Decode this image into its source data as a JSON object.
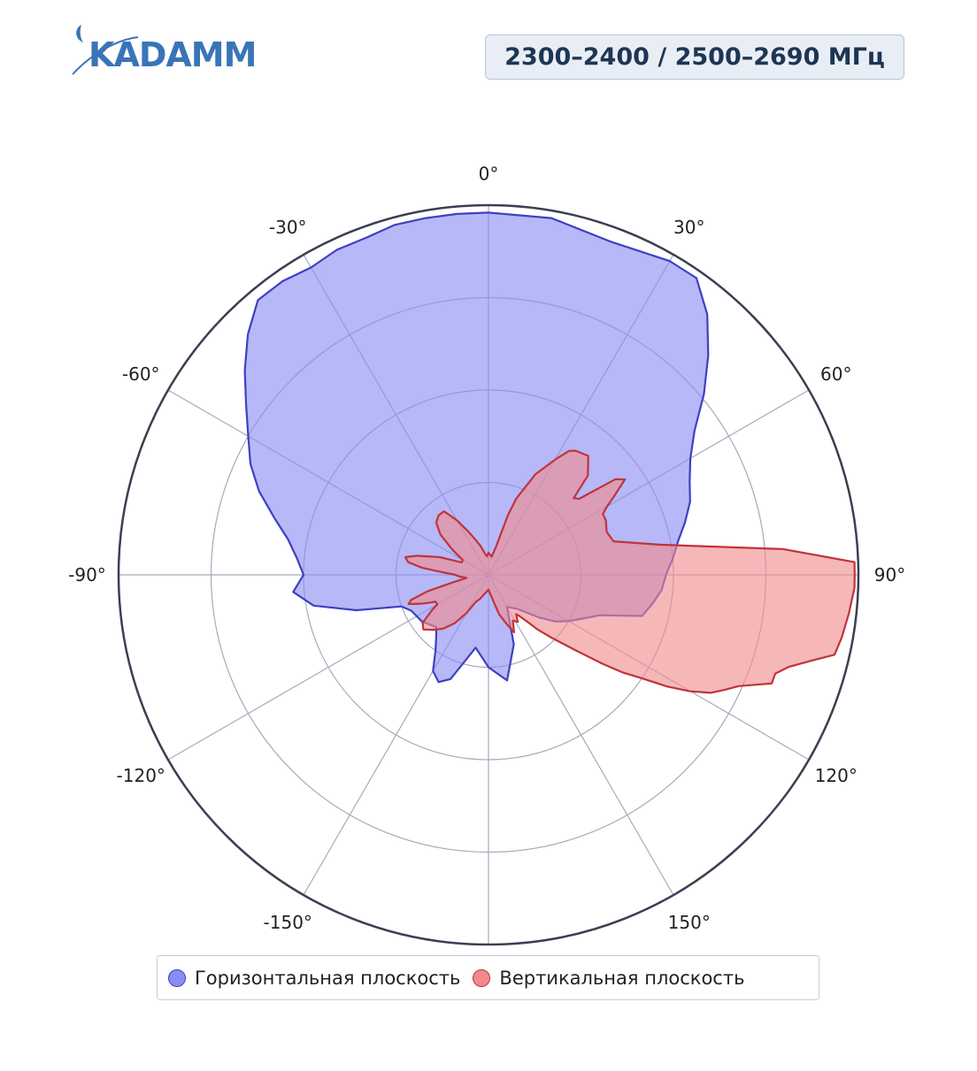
{
  "header": {
    "logo_text": "KADAMM",
    "frequency_badge": "2300–2400 / 2500–2690 МГц"
  },
  "colors": {
    "horizontal_fill": "#8b8cf2",
    "horizontal_stroke": "#3f40c2",
    "vertical_fill": "#f08a8e",
    "vertical_stroke": "#c0343a",
    "grid": "#a9a9bb",
    "outer_ring": "#3b3f52",
    "logo": "#3a74b8"
  },
  "legend": {
    "placement": "bottom-center",
    "items": [
      {
        "label": "Горизонтальная плоскость",
        "color": "#8b8cf2"
      },
      {
        "label": "Вертикальная плоскость",
        "color": "#f08a8e"
      }
    ]
  },
  "chart_data": {
    "type": "polar",
    "angular_direction": "clockwise",
    "zero_at": "top",
    "angular_ticks": [
      {
        "angle": 0,
        "label": "0°"
      },
      {
        "angle": 30,
        "label": "30°"
      },
      {
        "angle": 60,
        "label": "60°"
      },
      {
        "angle": 90,
        "label": "90°"
      },
      {
        "angle": 120,
        "label": "120°"
      },
      {
        "angle": 150,
        "label": "150°"
      },
      {
        "angle": 180,
        "label": ""
      },
      {
        "angle": -150,
        "label": "-150°"
      },
      {
        "angle": -120,
        "label": "-120°"
      },
      {
        "angle": -90,
        "label": "-90°"
      },
      {
        "angle": -60,
        "label": "-60°"
      },
      {
        "angle": -30,
        "label": "-30°"
      }
    ],
    "radial_range": [
      0,
      1
    ],
    "radial_grid": [
      0.25,
      0.5,
      0.75,
      1.0
    ],
    "series": [
      {
        "name": "Горизонтальная плоскость",
        "points": [
          [
            0,
            0.98
          ],
          [
            10,
            0.98
          ],
          [
            20,
            0.96
          ],
          [
            30,
            0.98
          ],
          [
            35,
            0.98
          ],
          [
            40,
            0.92
          ],
          [
            45,
            0.84
          ],
          [
            50,
            0.76
          ],
          [
            55,
            0.68
          ],
          [
            60,
            0.63
          ],
          [
            65,
            0.6
          ],
          [
            70,
            0.58
          ],
          [
            75,
            0.55
          ],
          [
            80,
            0.52
          ],
          [
            85,
            0.5
          ],
          [
            90,
            0.48
          ],
          [
            95,
            0.47
          ],
          [
            100,
            0.45
          ],
          [
            105,
            0.43
          ],
          [
            110,
            0.32
          ],
          [
            115,
            0.28
          ],
          [
            120,
            0.25
          ],
          [
            125,
            0.22
          ],
          [
            130,
            0.18
          ],
          [
            140,
            0.12
          ],
          [
            150,
            0.1
          ],
          [
            160,
            0.2
          ],
          [
            170,
            0.29
          ],
          [
            180,
            0.25
          ],
          [
            190,
            0.2
          ],
          [
            200,
            0.3
          ],
          [
            205,
            0.32
          ],
          [
            210,
            0.3
          ],
          [
            215,
            0.25
          ],
          [
            220,
            0.22
          ],
          [
            225,
            0.2
          ],
          [
            235,
            0.22
          ],
          [
            245,
            0.23
          ],
          [
            250,
            0.25
          ],
          [
            255,
            0.37
          ],
          [
            260,
            0.48
          ],
          [
            265,
            0.53
          ],
          [
            270,
            0.5
          ],
          [
            275,
            0.52
          ],
          [
            280,
            0.55
          ],
          [
            285,
            0.6
          ],
          [
            290,
            0.66
          ],
          [
            295,
            0.71
          ],
          [
            300,
            0.75
          ],
          [
            305,
            0.8
          ],
          [
            310,
            0.86
          ],
          [
            315,
            0.92
          ],
          [
            320,
            0.97
          ],
          [
            325,
            0.97
          ],
          [
            330,
            0.96
          ],
          [
            335,
            0.97
          ],
          [
            340,
            0.97
          ],
          [
            345,
            0.98
          ],
          [
            350,
            0.98
          ],
          [
            355,
            0.98
          ]
        ]
      },
      {
        "name": "Вертикальная плоскость",
        "points": [
          [
            0,
            0.06
          ],
          [
            10,
            0.05
          ],
          [
            15,
            0.08
          ],
          [
            18,
            0.17
          ],
          [
            20,
            0.22
          ],
          [
            25,
            0.3
          ],
          [
            30,
            0.36
          ],
          [
            33,
            0.4
          ],
          [
            35,
            0.41
          ],
          [
            40,
            0.42
          ],
          [
            45,
            0.38
          ],
          [
            48,
            0.31
          ],
          [
            50,
            0.32
          ],
          [
            53,
            0.43
          ],
          [
            55,
            0.45
          ],
          [
            58,
            0.4
          ],
          [
            60,
            0.37
          ],
          [
            62,
            0.35
          ],
          [
            65,
            0.35
          ],
          [
            70,
            0.34
          ],
          [
            75,
            0.35
          ],
          [
            80,
            0.47
          ],
          [
            85,
            0.8
          ],
          [
            88,
            0.99
          ],
          [
            90,
            0.99
          ],
          [
            92,
            0.99
          ],
          [
            96,
            0.98
          ],
          [
            100,
            0.97
          ],
          [
            103,
            0.96
          ],
          [
            105,
            0.9
          ],
          [
            107,
            0.85
          ],
          [
            109,
            0.82
          ],
          [
            111,
            0.82
          ],
          [
            114,
            0.74
          ],
          [
            116,
            0.71
          ],
          [
            118,
            0.68
          ],
          [
            120,
            0.63
          ],
          [
            122,
            0.57
          ],
          [
            124,
            0.5
          ],
          [
            126,
            0.45
          ],
          [
            128,
            0.39
          ],
          [
            131,
            0.31
          ],
          [
            133,
            0.27
          ],
          [
            135,
            0.24
          ],
          [
            138,
            0.2
          ],
          [
            140,
            0.17
          ],
          [
            143,
            0.14
          ],
          [
            145,
            0.13
          ],
          [
            148,
            0.15
          ],
          [
            152,
            0.14
          ],
          [
            156,
            0.17
          ],
          [
            160,
            0.14
          ],
          [
            165,
            0.11
          ],
          [
            170,
            0.07
          ],
          [
            180,
            0.04
          ],
          [
            190,
            0.05
          ],
          [
            200,
            0.07
          ],
          [
            205,
            0.08
          ],
          [
            210,
            0.12
          ],
          [
            215,
            0.16
          ],
          [
            220,
            0.19
          ],
          [
            225,
            0.21
          ],
          [
            230,
            0.23
          ],
          [
            234,
            0.22
          ],
          [
            238,
            0.18
          ],
          [
            240,
            0.16
          ],
          [
            243,
            0.16
          ],
          [
            246,
            0.19
          ],
          [
            248,
            0.21
          ],
          [
            250,
            0.23
          ],
          [
            252,
            0.22
          ],
          [
            255,
            0.17
          ],
          [
            258,
            0.1
          ],
          [
            262,
            0.06
          ],
          [
            267,
            0.08
          ],
          [
            270,
            0.09
          ],
          [
            273,
            0.12
          ],
          [
            276,
            0.18
          ],
          [
            279,
            0.22
          ],
          [
            282,
            0.23
          ],
          [
            285,
            0.2
          ],
          [
            290,
            0.14
          ],
          [
            295,
            0.08
          ],
          [
            300,
            0.08
          ],
          [
            305,
            0.12
          ],
          [
            310,
            0.17
          ],
          [
            315,
            0.2
          ],
          [
            320,
            0.21
          ],
          [
            325,
            0.21
          ],
          [
            330,
            0.17
          ],
          [
            335,
            0.13
          ],
          [
            340,
            0.1
          ],
          [
            345,
            0.08
          ],
          [
            350,
            0.06
          ],
          [
            355,
            0.05
          ]
        ]
      }
    ]
  }
}
